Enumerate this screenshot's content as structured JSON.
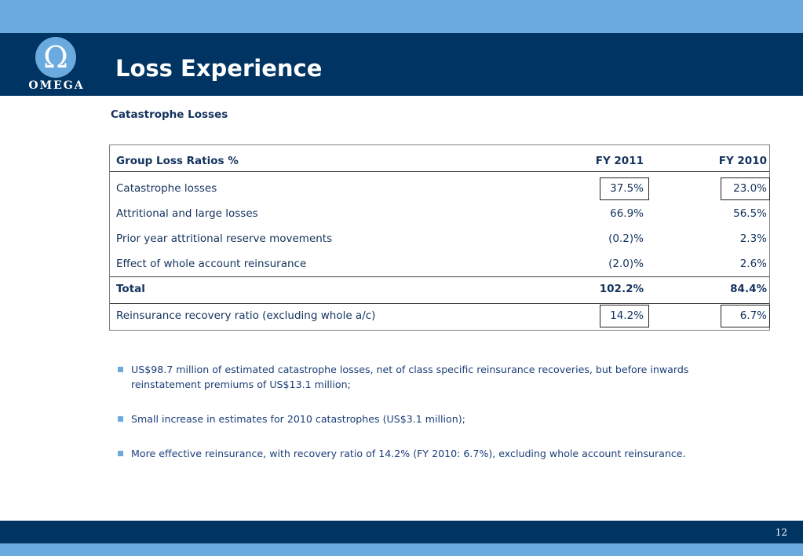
{
  "header": {
    "title": "Loss Experience",
    "logo": {
      "symbol": "Ω",
      "text": "OMEGA"
    }
  },
  "subtitle": "Catastrophe Losses",
  "table": {
    "headers": [
      "Group Loss Ratios %",
      "FY 2011",
      "FY 2010"
    ],
    "rows": [
      {
        "label": "Catastrophe losses",
        "fy2011": "37.5%",
        "fy2010": "23.0%",
        "boxed": true
      },
      {
        "label": "Attritional and large losses",
        "fy2011": "66.9%",
        "fy2010": "56.5%"
      },
      {
        "label": "Prior year attritional reserve movements",
        "fy2011": "(0.2)%",
        "fy2010": "2.3%"
      },
      {
        "label": "Effect of whole account reinsurance",
        "fy2011": "(2.0)%",
        "fy2010": "2.6%"
      },
      {
        "label": "Total",
        "fy2011": "102.2%",
        "fy2010": "84.4%",
        "bold": true
      },
      {
        "label": "Reinsurance recovery ratio (excluding whole a/c)",
        "fy2011": "14.2%",
        "fy2010": "6.7%",
        "boxed": true
      }
    ]
  },
  "bullets": [
    "US$98.7 million of estimated catastrophe losses, net of class specific reinsurance recoveries, but before inwards reinstatement premiums of US$13.1 million;",
    "Small increase in estimates for 2010 catastrophes (US$3.1 million);",
    "More effective reinsurance, with recovery ratio of 14.2% (FY 2010: 6.7%), excluding whole account reinsurance."
  ],
  "footer": {
    "page_number": "12"
  },
  "colors": {
    "navy": "#003462",
    "light_blue": "#6aaade",
    "text": "#13325c"
  }
}
